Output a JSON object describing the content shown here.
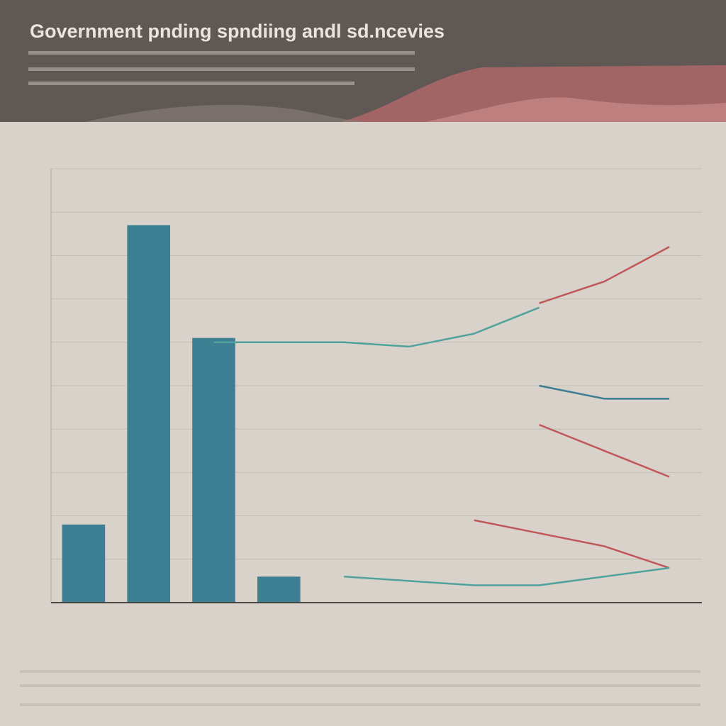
{
  "chart_data": {
    "type": "bar",
    "title": "Government pnding spndiing andl sd.ncevies",
    "categories": [
      null,
      null,
      null,
      null,
      null,
      null,
      null,
      null,
      null,
      null
    ],
    "values": [
      18,
      87,
      61,
      6,
      null,
      null,
      null,
      null,
      null,
      null
    ],
    "color": "#3d7f93",
    "ylim": [
      0,
      100
    ],
    "grid": true,
    "lines": [
      {
        "color": "#4fa39c",
        "values": [
          null,
          null,
          60,
          60,
          60,
          59,
          62,
          68,
          null,
          null
        ]
      },
      {
        "color": "#c0575a",
        "values": [
          null,
          null,
          null,
          null,
          null,
          null,
          null,
          69,
          74,
          82
        ]
      },
      {
        "color": "#3e7e92",
        "values": [
          null,
          null,
          null,
          null,
          null,
          null,
          null,
          50,
          47,
          47
        ]
      },
      {
        "color": "#c0575a",
        "values": [
          null,
          null,
          null,
          null,
          null,
          null,
          null,
          41,
          35,
          29
        ]
      },
      {
        "color": "#c0575a",
        "values": [
          null,
          null,
          null,
          null,
          null,
          null,
          19,
          16,
          13,
          8
        ]
      },
      {
        "color": "#4fa39c",
        "values": [
          null,
          null,
          null,
          null,
          6,
          5,
          4,
          4,
          6,
          8
        ]
      }
    ]
  }
}
